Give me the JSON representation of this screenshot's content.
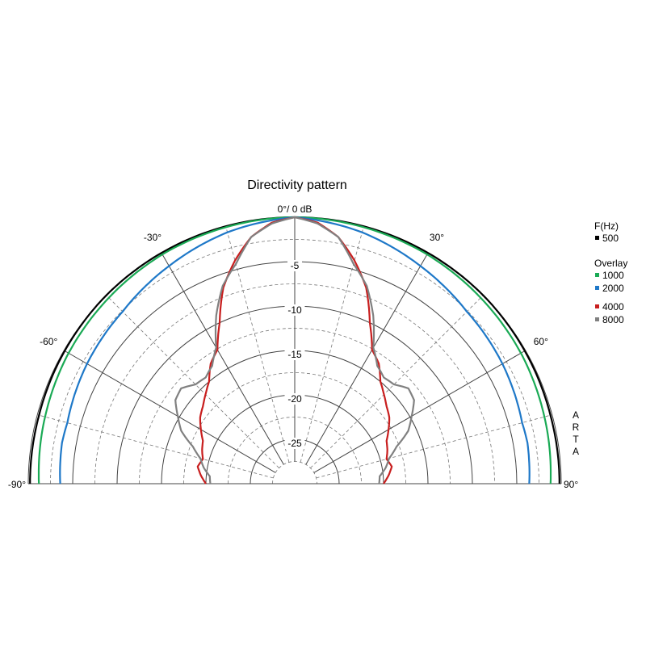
{
  "chart_data": {
    "type": "polar",
    "title": "Directivity pattern",
    "top_label": "0°/ 0 dB",
    "angle_labels": [
      "-90°",
      "-60°",
      "-30°",
      "30°",
      "60°",
      "90°"
    ],
    "angle_values": [
      -90,
      -60,
      -30,
      30,
      60,
      90
    ],
    "db_labels": [
      "-5",
      "-10",
      "-15",
      "-20",
      "-25"
    ],
    "db_values": [
      -5,
      -10,
      -15,
      -20,
      -25
    ],
    "r_range_db": [
      -30,
      0
    ],
    "grid": true,
    "legend_header": "F(Hz)",
    "overlay_header": "Overlay",
    "watermark": "ARTA",
    "series": [
      {
        "name": "500",
        "color": "#000000",
        "angles": [
          0,
          15,
          30,
          45,
          60,
          75,
          90
        ],
        "values": [
          0,
          0,
          0,
          0,
          -0.1,
          -0.2,
          -0.2
        ]
      },
      {
        "name": "1000",
        "color": "#1aaa55",
        "angles": [
          0,
          15,
          30,
          45,
          60,
          75,
          90
        ],
        "values": [
          0,
          -0.1,
          -0.2,
          -0.4,
          -0.6,
          -0.9,
          -1.2
        ]
      },
      {
        "name": "2000",
        "color": "#1e78c8",
        "angles": [
          0,
          15,
          30,
          45,
          60,
          75,
          80,
          90
        ],
        "values": [
          0,
          -0.7,
          -1.7,
          -2.6,
          -3.0,
          -3.5,
          -3.4,
          -3.6
        ]
      },
      {
        "name": "4000",
        "color": "#c81e1e",
        "angles": [
          0,
          5,
          10,
          15,
          20,
          25,
          30,
          35,
          40,
          45,
          50,
          55,
          60,
          65,
          70,
          75,
          80,
          85,
          90
        ],
        "values": [
          0,
          -0.5,
          -1.8,
          -4.0,
          -6.5,
          -10.0,
          -12.6,
          -13.5,
          -15.0,
          -15.8,
          -16.5,
          -17.0,
          -17.8,
          -18.6,
          -18.9,
          -19.3,
          -18.9,
          -19.4,
          -20.0
        ]
      },
      {
        "name": "8000",
        "color": "#808080",
        "angles": [
          0,
          5,
          10,
          15,
          20,
          25,
          30,
          35,
          40,
          45,
          50,
          55,
          60,
          65,
          70,
          75,
          80,
          85,
          90
        ],
        "values": [
          0,
          -0.6,
          -1.8,
          -4.4,
          -6.3,
          -9.1,
          -12.3,
          -13.8,
          -14.4,
          -14.2,
          -13.3,
          -13.6,
          -14.8,
          -15.9,
          -17.8,
          -19.0,
          -19.6,
          -20.4,
          -20.5
        ]
      }
    ]
  }
}
